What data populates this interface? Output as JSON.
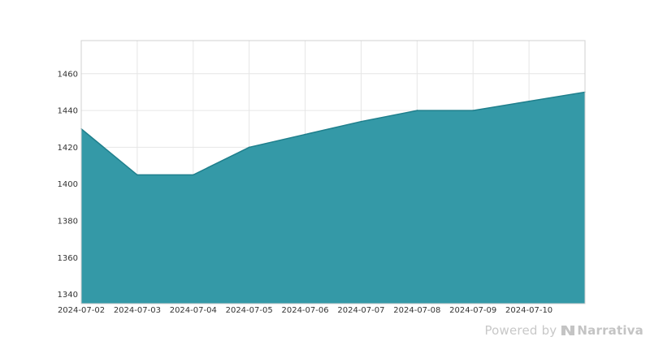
{
  "chart_data": {
    "type": "area",
    "x": [
      "2024-07-02",
      "2024-07-03",
      "2024-07-04",
      "2024-07-05",
      "2024-07-06",
      "2024-07-07",
      "2024-07-08",
      "2024-07-09",
      "2024-07-10",
      "2024-07-11"
    ],
    "values": [
      1430,
      1405,
      1405,
      1420,
      1427,
      1434,
      1440,
      1440,
      1445,
      1450
    ],
    "x_tick_labels": [
      "2024-07-02",
      "2024-07-03",
      "2024-07-04",
      "2024-07-05",
      "2024-07-06",
      "2024-07-07",
      "2024-07-08",
      "2024-07-09",
      "2024-07-10"
    ],
    "y_ticks": [
      1340,
      1360,
      1380,
      1400,
      1420,
      1440,
      1460
    ],
    "ylim": [
      1335,
      1478
    ],
    "grid": true,
    "title": "",
    "xlabel": "",
    "ylabel": "",
    "fill_color": "#3499a7",
    "line_color": "#1f7f8c",
    "grid_color": "#e6e6e6",
    "frame_color": "#d0d0d0"
  },
  "watermark": {
    "powered_by": "Powered by",
    "brand": "Narrativa",
    "color": "#c8c8c8"
  }
}
